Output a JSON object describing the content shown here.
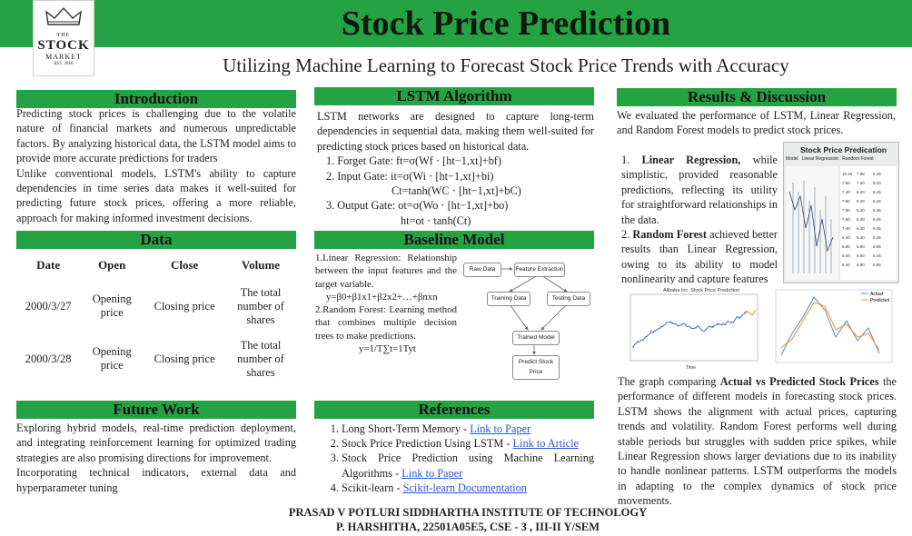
{
  "header": {
    "title": "Stock Price Prediction",
    "subtitle": "Utilizing Machine Learning to Forecast Stock Price Trends with Accuracy",
    "logo": {
      "line1": "THE",
      "line2": "STOCK",
      "line3": "MARKET",
      "line4": "EST. 2018"
    }
  },
  "intro": {
    "heading": "Introduction",
    "p1": "Predicting stock prices is challenging due to the volatile nature of financial markets and numerous unpredictable factors. By analyzing historical data, the LSTM model aims to provide more accurate predictions for traders",
    "p2": "Unlike conventional models, LSTM's ability to capture dependencies in time series data makes it well-suited for predicting future stock prices, offering a more reliable, approach for making informed investment decisions."
  },
  "data_section": {
    "heading": "Data",
    "columns": [
      "Date",
      "Open",
      "Close",
      "Volume"
    ],
    "rows": [
      [
        "2000/3/27",
        "Opening price",
        "Closing price",
        "The total number of shares"
      ],
      [
        "2000/3/28",
        "Opening price",
        "Closing price",
        "The total number of shares"
      ]
    ]
  },
  "future": {
    "heading": "Future Work",
    "p1": "Exploring hybrid models, real-time prediction deployment, and integrating reinforcement learning for optimized trading strategies are also promising directions for improvement.",
    "p2": "Incorporating technical indicators, external data and hyperparameter tuning"
  },
  "lstm": {
    "heading": "LSTM Algorithm",
    "intro": "LSTM networks are designed to capture long-term dependencies in sequential data, making them well-suited for predicting stock prices based on historical data.",
    "item1": "Forget Gate: ft=σ(Wf ⋅ [ht−1,xt]+bf)",
    "item2a": "Input Gate: it=σ(Wi ⋅ [ht−1,xt]+bi)",
    "item2b": "Ct=tanh(WC ⋅ [ht−1,xt]+bC)",
    "item3a": "Output Gate: ot=σ(Wo ⋅ [ht−1,xt]+bo)",
    "item3b": "ht=ot ⋅ tanh(Ct)"
  },
  "baseline": {
    "heading": "Baseline Model",
    "lr": "1.Linear Regression: Relationship between the input features and the target variable.",
    "lr_eq": "y=β0+β1x1+β2x2+…+βnxn",
    "rf": "2.Random Forest: Learning method that combines multiple decision trees to make predictions.",
    "rf_eq": "y=1/T∑t=1Tyt",
    "flow": {
      "raw": "Raw Data",
      "feat": "Feature Extraction",
      "train": "Training Data",
      "test": "Testing Data",
      "model": "Trained Model",
      "predict": "Predict Stock Price"
    }
  },
  "references": {
    "heading": "References",
    "items": [
      {
        "text": "Long Short-Term Memory - ",
        "link": "Link to Paper"
      },
      {
        "text": "Stock Price Prediction Using LSTM - ",
        "link": "Link to Article"
      },
      {
        "text": "Stock Price Prediction using Machine Learning Algorithms - ",
        "link": "Link to Paper"
      },
      {
        "text": "Scikit-learn - ",
        "link": "Scikit-learn Documentation"
      }
    ]
  },
  "results": {
    "heading": "Results & Discussion",
    "intro": "We evaluated the performance of LSTM, Linear Regression, and Random Forest models to predict stock prices.",
    "lr_bold": "Linear Regression,",
    "lr_text": " while simplistic, provided reasonable predictions, reflecting its utility for straightforward relationships in the data.",
    "rf_bold": "Random Forest",
    "rf_text": " achieved better results than Linear Regression, owing to its ability to model nonlinearity and capture features",
    "graph_pre": "The graph comparing ",
    "graph_bold": "Actual vs Predicted Stock Prices",
    "graph_post": " the performance of different models in forecasting stock prices. LSTM shows the alignment with actual prices, capturing trends and volatility. Random Forest performs well during stable periods but struggles with sudden price spikes, while Linear Regression shows larger deviations due to its inability to handle nonlinear patterns. LSTM outperforms the models in adapting to the complex dynamics of stock price movements.",
    "thumb_title": "Stock Price Predication",
    "thumb_headers": [
      "Model",
      "Linear Regression",
      "Random Forest"
    ],
    "chart1_title": "Alibaba Inc. Stock Price Prediction",
    "chart1_xlabel": "Time",
    "chart2_legend": [
      "Actual",
      "Predicted"
    ]
  },
  "footer": {
    "line1": "PRASAD V POTLURI SIDDHARTHA INSTITUTE OF TECHNOLOGY",
    "line2": "P. HARSHITHA, 22501A05E5, CSE - 3 , III-II Y/SEM"
  },
  "colors": {
    "accent": "#24a244",
    "link": "#2a55d6"
  }
}
